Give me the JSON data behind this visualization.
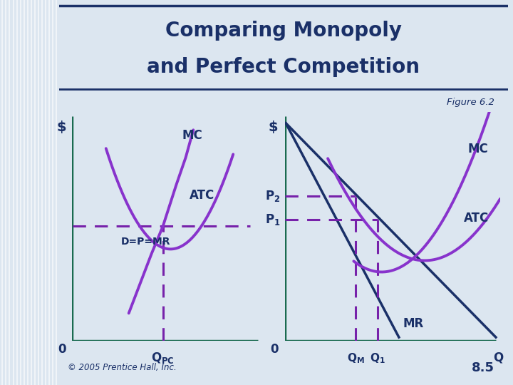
{
  "title_line1": "Comparing Monopoly",
  "title_line2": "and Perfect Competition",
  "figure_label": "Figure 6.2",
  "title_color": "#1a3068",
  "bg_color": "#dce6f0",
  "panel_bg": "#e8eef5",
  "stripe_color": "#c5d4e8",
  "title_box_color": "#ffffff",
  "border_color": "#1a3068",
  "curve_color": "#8833cc",
  "axis_color": "#1a6b50",
  "demand_color": "#1a3068",
  "dashed_color": "#7722aa",
  "label_color": "#1a3068",
  "footer_text": "© 2005 Prentice Hall, Inc.",
  "page_num": "8.5"
}
